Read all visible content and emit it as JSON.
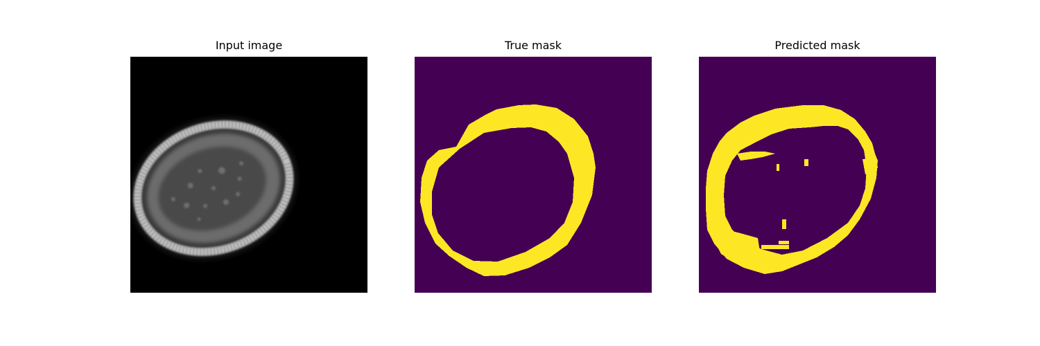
{
  "figure": {
    "panels": [
      {
        "title": "Input image",
        "kind": "grayscale-microscopy"
      },
      {
        "title": "True mask",
        "kind": "binary-mask"
      },
      {
        "title": "Predicted mask",
        "kind": "binary-mask"
      }
    ],
    "colors": {
      "page_background": "#ffffff",
      "input_background": "#000000",
      "mask_background": "#440154",
      "mask_foreground": "#fde725"
    }
  }
}
